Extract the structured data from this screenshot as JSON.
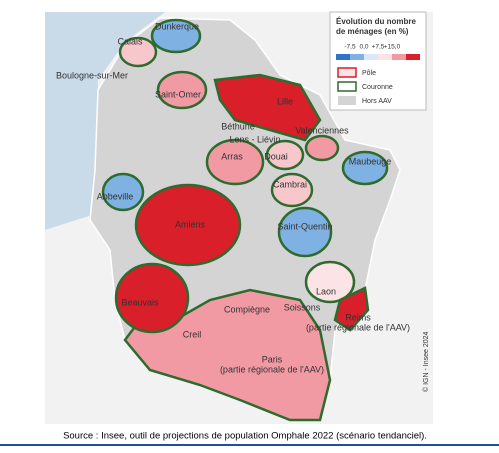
{
  "legend": {
    "title": [
      "Évolution du nombre",
      "de ménages (en %)"
    ],
    "scale": [
      "-7,5",
      "0,0",
      "+7,5",
      "+15,0"
    ],
    "items": [
      "Pôle",
      "Couronne",
      "Hors AAV"
    ]
  },
  "map": {
    "cities": [
      [
        "Dunkerque"
      ],
      [
        "Calais"
      ],
      [
        "Boulogne-sur-Mer"
      ],
      [
        "Saint-Omer"
      ],
      [
        "Lille"
      ],
      [
        "Valenciennes"
      ],
      [
        "Béthune"
      ],
      [
        "Lens - Liévin"
      ],
      [
        "Arras"
      ],
      [
        "Douai"
      ],
      [
        "Maubeuge"
      ],
      [
        "Cambrai"
      ],
      [
        "Abbeville"
      ],
      [
        "Saint-Quentin"
      ],
      [
        "Amiens"
      ],
      [
        "Laon"
      ],
      [
        "Beauvais"
      ],
      [
        "Compiègne"
      ],
      [
        "Soissons"
      ],
      [
        "Reims",
        "(partie régionale de l'AAV)"
      ],
      [
        "Creil"
      ],
      [
        "Paris",
        "(partie régionale de l'AAV)"
      ]
    ],
    "copyright": "© IGN - Insee 2024"
  },
  "source": "Source : Insee, outil de projections de population Omphale 2022 (scénario tendanciel)."
}
